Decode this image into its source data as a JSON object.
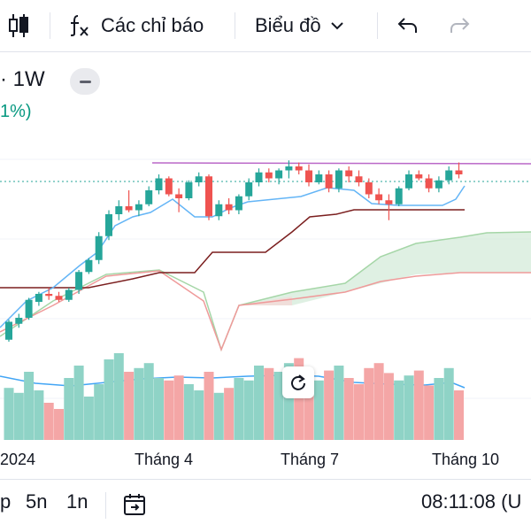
{
  "toolbar": {
    "indicators_label": "Các chỉ báo",
    "chart_type_label": "Biểu đồ"
  },
  "symbol": {
    "interval": "· 1W",
    "change_pct": "1%)"
  },
  "chart_data": {
    "type": "candlestick",
    "timeframe": "1W",
    "x_labels": [
      "2024",
      "Tháng 4",
      "Tháng 7",
      "Tháng 10"
    ],
    "colors": {
      "up": "#26a69a",
      "down": "#ef5350",
      "volume_up": "#8fd3c6",
      "volume_down": "#f4a6a6"
    },
    "series": [
      {
        "name": "candles",
        "ohlc": [
          [
            210,
            230,
            208,
            228
          ],
          [
            226,
            236,
            222,
            232
          ],
          [
            232,
            252,
            230,
            250
          ],
          [
            248,
            258,
            244,
            256
          ],
          [
            256,
            262,
            250,
            254
          ],
          [
            254,
            258,
            248,
            250
          ],
          [
            250,
            262,
            248,
            260
          ],
          [
            260,
            280,
            256,
            278
          ],
          [
            278,
            292,
            276,
            290
          ],
          [
            290,
            318,
            286,
            314
          ],
          [
            314,
            340,
            310,
            336
          ],
          [
            336,
            350,
            330,
            344
          ],
          [
            344,
            360,
            338,
            340
          ],
          [
            340,
            350,
            334,
            346
          ],
          [
            346,
            364,
            344,
            360
          ],
          [
            360,
            376,
            356,
            372
          ],
          [
            372,
            374,
            354,
            356
          ],
          [
            356,
            362,
            338,
            352
          ],
          [
            352,
            370,
            350,
            368
          ],
          [
            368,
            378,
            364,
            374
          ],
          [
            374,
            376,
            330,
            334
          ],
          [
            334,
            350,
            330,
            346
          ],
          [
            346,
            352,
            336,
            340
          ],
          [
            340,
            356,
            336,
            354
          ],
          [
            354,
            372,
            350,
            368
          ],
          [
            368,
            382,
            364,
            378
          ],
          [
            378,
            382,
            368,
            372
          ],
          [
            372,
            382,
            366,
            380
          ],
          [
            380,
            390,
            372,
            384
          ],
          [
            384,
            388,
            376,
            380
          ],
          [
            380,
            386,
            364,
            368
          ],
          [
            368,
            380,
            366,
            376
          ],
          [
            376,
            380,
            358,
            362
          ],
          [
            362,
            382,
            358,
            380
          ],
          [
            380,
            384,
            368,
            374
          ],
          [
            374,
            380,
            364,
            368
          ],
          [
            368,
            372,
            352,
            356
          ],
          [
            356,
            362,
            346,
            350
          ],
          [
            350,
            356,
            330,
            346
          ],
          [
            346,
            364,
            344,
            362
          ],
          [
            362,
            380,
            360,
            376
          ],
          [
            376,
            380,
            370,
            372
          ],
          [
            372,
            376,
            358,
            362
          ],
          [
            362,
            374,
            358,
            370
          ],
          [
            370,
            384,
            366,
            380
          ],
          [
            380,
            388,
            372,
            376
          ]
        ]
      },
      {
        "name": "volume",
        "values": [
          42,
          38,
          55,
          40,
          30,
          25,
          50,
          60,
          35,
          45,
          65,
          70,
          55,
          58,
          62,
          50,
          48,
          52,
          45,
          40,
          55,
          38,
          42,
          50,
          48,
          60,
          58,
          55,
          62,
          66,
          52,
          48,
          56,
          60,
          50,
          45,
          58,
          62,
          54,
          48,
          52,
          56,
          44,
          50,
          58,
          40
        ]
      }
    ],
    "annotations": [
      "ichimoku cloud",
      "moving average lines",
      "volume moving average"
    ]
  },
  "bottom": {
    "range_p": "p",
    "range_5n": "5n",
    "range_1n": "1n",
    "time": "08:11:08 (U"
  }
}
